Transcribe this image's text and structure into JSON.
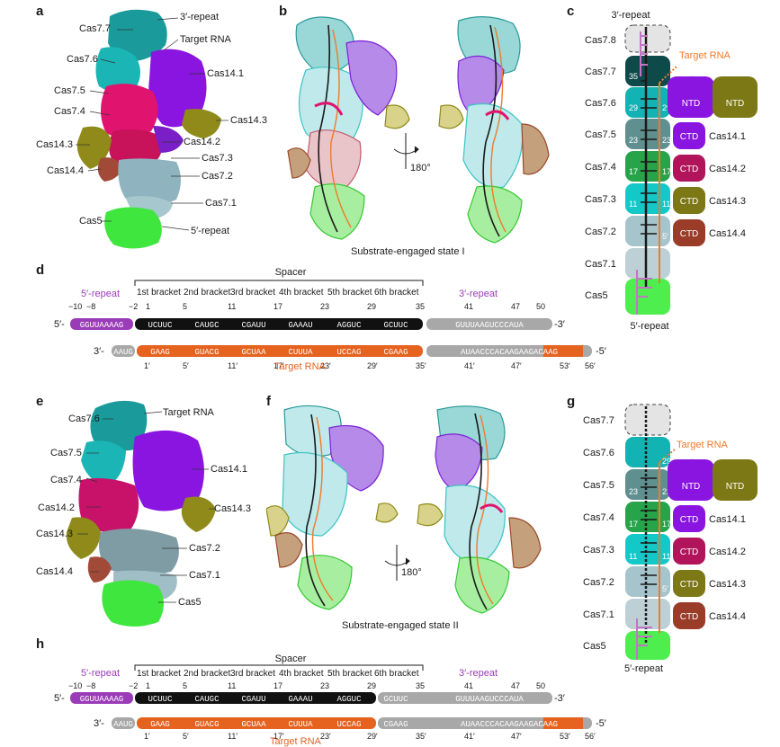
{
  "panel_letters": {
    "a": "a",
    "b": "b",
    "c": "c",
    "d": "d",
    "e": "e",
    "f": "f",
    "g": "g",
    "h": "h"
  },
  "state1": {
    "caption": "Substrate-engaged state I",
    "rotation": "180°",
    "density_labels": {
      "cas77": "Cas7.7",
      "repeat3": "3′-repeat",
      "target": "Target RNA",
      "cas76": "Cas7.6",
      "cas141": "Cas14.1",
      "cas75": "Cas7.5",
      "cas74": "Cas7.4",
      "cas143r": "Cas14.3",
      "cas143l": "Cas14.3",
      "cas142": "Cas14.2",
      "cas73": "Cas7.3",
      "cas144": "Cas14.4",
      "cas72": "Cas7.2",
      "cas71": "Cas7.1",
      "cas5": "Cas5",
      "repeat5": "5′-repeat"
    }
  },
  "state2": {
    "caption": "Substrate-engaged state II",
    "rotation": "180°",
    "density_labels": {
      "cas76": "Cas7.6",
      "target": "Target RNA",
      "cas75": "Cas7.5",
      "cas141": "Cas14.1",
      "cas74": "Cas7.4",
      "cas142": "Cas14.2",
      "cas143r": "Cas14.3",
      "cas143l": "Cas14.3",
      "cas72": "Cas7.2",
      "cas144": "Cas14.4",
      "cas71": "Cas7.1",
      "cas5": "Cas5"
    }
  },
  "schematic_c": {
    "top": "3′-repeat",
    "bottom": "5′-repeat",
    "target": "Target RNA",
    "rows": [
      "Cas7.8",
      "Cas7.7",
      "Cas7.6",
      "Cas7.5",
      "Cas7.4",
      "Cas7.3",
      "Cas7.2",
      "Cas7.1",
      "Cas5"
    ],
    "numbers": {
      "n35": "35",
      "n29a": "29",
      "n29b": "29′",
      "n23a": "23",
      "n23b": "23′",
      "n17a": "17",
      "n17b": "17′",
      "n11a": "11",
      "n11b": "11′",
      "n5": "5′"
    },
    "domains": {
      "ntd1": "NTD",
      "ntd2": "NTD",
      "ctd1": "CTD",
      "ctd2": "CTD",
      "ctd3": "CTD",
      "ctd4": "CTD"
    },
    "cas14": [
      "Cas14.1",
      "Cas14.2",
      "Cas14.3",
      "Cas14.4"
    ]
  },
  "schematic_g": {
    "top": "",
    "bottom": "5′-repeat",
    "target": "Target RNA",
    "rows": [
      "Cas7.7",
      "Cas7.6",
      "Cas7.5",
      "Cas7.4",
      "Cas7.3",
      "Cas7.2",
      "Cas7.1",
      "Cas5"
    ],
    "numbers": {
      "n29b": "29′",
      "n23a": "23",
      "n23b": "23′",
      "n17a": "17",
      "n17b": "17′",
      "n11a": "11",
      "n11b": "11′",
      "n5": "5′"
    },
    "domains": {
      "ntd1": "NTD",
      "ntd2": "NTD",
      "ctd1": "CTD",
      "ctd2": "CTD",
      "ctd3": "CTD",
      "ctd4": "CTD"
    },
    "cas14": [
      "Cas14.1",
      "Cas14.2",
      "Cas14.3",
      "Cas14.4"
    ]
  },
  "seq_d": {
    "spacer": "Spacer",
    "repeat5": "5′-repeat",
    "repeat3": "3′-repeat",
    "target": "Target RNA",
    "brackets": [
      "1st bracket",
      "2nd bracket",
      "3rd bracket",
      "4th bracket",
      "5th bracket",
      "6th bracket"
    ],
    "top_nums": [
      "−10",
      "−8",
      "−2",
      "1",
      "5",
      "11",
      "17",
      "23",
      "29",
      "35",
      "41",
      "47",
      "50"
    ],
    "bottom_nums": [
      "1′",
      "5′",
      "11′",
      "17′",
      "23′",
      "29′",
      "35′",
      "41′",
      "47′",
      "53′",
      "56′"
    ],
    "top_prefix": "5′-",
    "top_suffix": "-3′",
    "bottom_prefix": "3′-",
    "bottom_suffix": "-5′",
    "top_pre": "GGUUAAAAG",
    "top_c": "C",
    "top_spacer": [
      "UCUUC",
      "CAUGC",
      "CGAUU",
      "GAAAU",
      "AGGUC",
      "GCUUC"
    ],
    "top_insert": [
      "U",
      "C",
      "U",
      "C",
      "G",
      "G"
    ],
    "top_tail": "GUUUAAGUCCCAUA",
    "bot_pre": "AAUG",
    "bot_spacer": [
      "GAAG",
      "GUACG",
      "GCUAA",
      "CUUUA",
      "UCCAG",
      "CGAAG"
    ],
    "bot_insert": [
      "A",
      "A",
      "A",
      "A",
      "G",
      "C"
    ],
    "bot_tail": "AUAACCCACAAGAAGACAAG"
  },
  "seq_h": {
    "spacer": "Spacer",
    "repeat5": "5′-repeat",
    "repeat3": "3′-repeat",
    "target": "Target RNA",
    "brackets": [
      "1st bracket",
      "2nd bracket",
      "3rd bracket",
      "4th bracket",
      "5th bracket",
      "6th bracket"
    ],
    "top_nums": [
      "−10",
      "−8",
      "−2",
      "1",
      "5",
      "11",
      "17",
      "23",
      "29",
      "35",
      "41",
      "47",
      "50"
    ],
    "bottom_nums": [
      "1′",
      "5′",
      "11′",
      "17′",
      "23′",
      "29′",
      "35′",
      "41′",
      "47′",
      "53′",
      "56′"
    ],
    "top_prefix": "5′-",
    "top_suffix": "-3′",
    "bottom_prefix": "3′-",
    "bottom_suffix": "-5′"
  }
}
